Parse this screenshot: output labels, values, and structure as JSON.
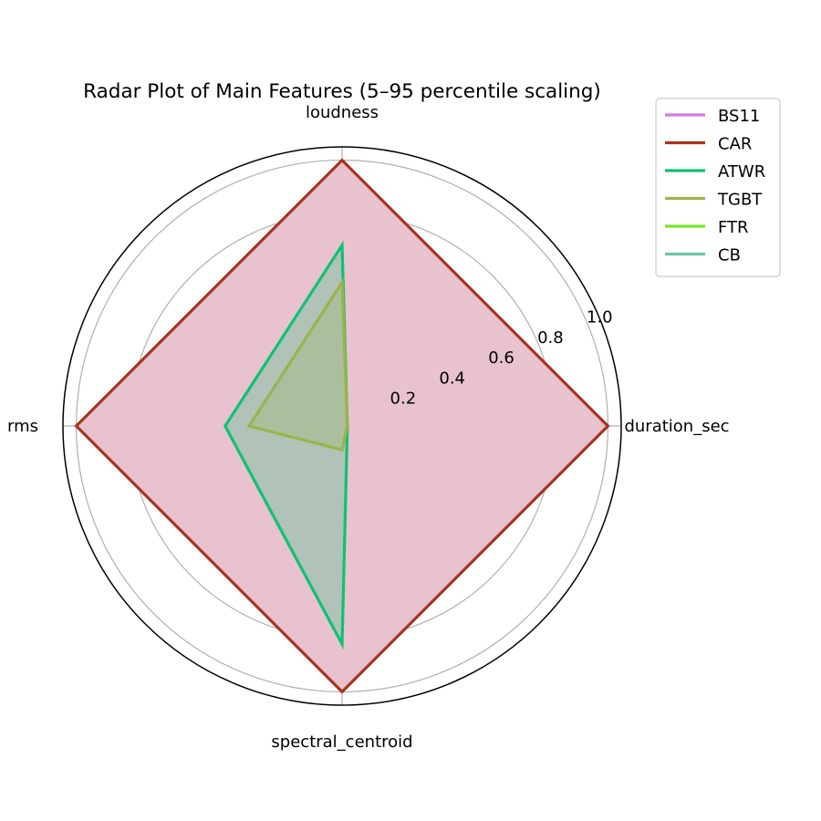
{
  "chart_data": {
    "type": "radar",
    "title": "Radar Plot of Main Features (5–95 percentile scaling)",
    "axes": [
      "duration_sec",
      "loudness",
      "rms",
      "spectral_centroid"
    ],
    "rlim": [
      0,
      1.05
    ],
    "rticks": [
      0.2,
      0.4,
      0.6,
      0.8,
      1.0
    ],
    "rtick_labels": [
      "0.2",
      "0.4",
      "0.6",
      "0.8",
      "1.0"
    ],
    "grid": true,
    "legend_position": "top-right, outside plot",
    "series": [
      {
        "name": "BS11",
        "color": "#d17fdf",
        "values": [
          0.0,
          0.0,
          0.0,
          0.0
        ]
      },
      {
        "name": "CAR",
        "color": "#a8341b",
        "fill": "#e8c2cf",
        "values": [
          1.0,
          1.0,
          1.0,
          1.0
        ]
      },
      {
        "name": "ATWR",
        "color": "#0dc373",
        "values": [
          0.02,
          0.68,
          0.44,
          0.82
        ]
      },
      {
        "name": "TGBT",
        "color": "#9ab44a",
        "values": [
          0.02,
          0.54,
          0.35,
          0.09
        ]
      },
      {
        "name": "FTR",
        "color": "#74e827",
        "values": [
          0.0,
          0.0,
          0.0,
          0.0
        ]
      },
      {
        "name": "CB",
        "color": "#6cc6a7",
        "values": [
          0.0,
          0.0,
          0.0,
          0.0
        ]
      }
    ]
  }
}
